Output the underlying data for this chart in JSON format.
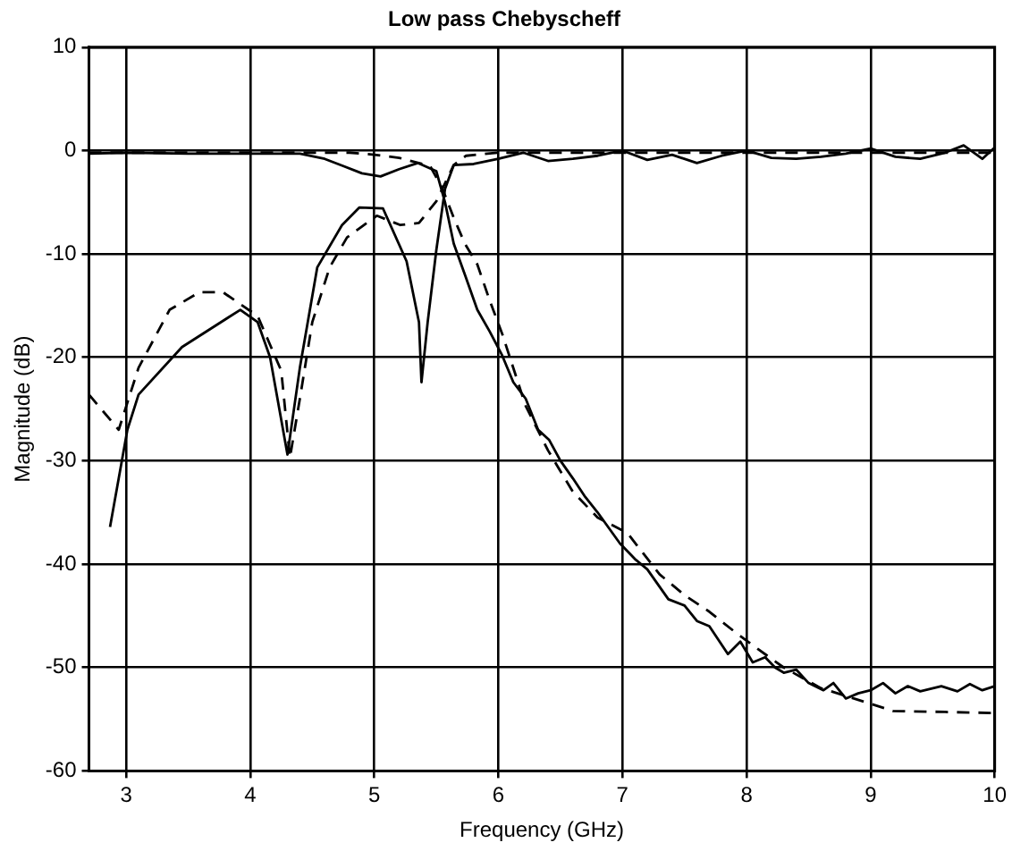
{
  "chart_data": {
    "type": "line",
    "title": "Low pass Chebyscheff",
    "xlabel": "Frequency (GHz)",
    "ylabel": "Magnitude (dB)",
    "xlim": [
      2.7,
      10
    ],
    "xticks": [
      3,
      4,
      5,
      6,
      7,
      8,
      9,
      10
    ],
    "ylim": [
      -60,
      10
    ],
    "yticks": [
      -60,
      -50,
      -40,
      -30,
      -20,
      -10,
      0,
      10
    ],
    "grid": true,
    "legend": false,
    "marker": "none",
    "series": [
      {
        "color": "#000000",
        "line_style": "solid",
        "x": [
          2.7,
          3,
          3.5,
          4,
          4.4,
          4.6,
          4.75,
          4.9,
          5.05,
          5.2,
          5.35,
          5.5,
          5.57,
          5.64,
          5.73,
          5.83,
          5.93,
          6.03,
          6.12,
          6.22,
          6.32,
          6.41,
          6.5,
          6.6,
          6.7,
          6.8,
          6.98,
          7.1,
          7.2,
          7.37,
          7.5,
          7.6,
          7.7,
          7.85,
          7.95,
          8.05,
          8.15,
          8.23,
          8.3,
          8.4,
          8.5,
          8.62,
          8.7,
          8.8,
          8.9,
          9.0,
          9.1,
          9.2,
          9.3,
          9.4,
          9.57,
          9.7,
          9.8,
          9.9,
          10
        ],
        "values": [
          -0.3,
          -0.2,
          -0.3,
          -0.3,
          -0.3,
          -0.8,
          -1.5,
          -2.2,
          -2.5,
          -1.8,
          -1.2,
          -2,
          -5,
          -9,
          -12,
          -15.4,
          -17.5,
          -19.8,
          -22.4,
          -24,
          -27,
          -28,
          -30,
          -31.7,
          -33.5,
          -35,
          -38,
          -39.5,
          -40.5,
          -43.4,
          -44,
          -45.5,
          -46,
          -48.7,
          -47.5,
          -49.5,
          -49,
          -50,
          -50.5,
          -50.2,
          -51.5,
          -52.2,
          -51.5,
          -53,
          -52.5,
          -52.2,
          -51.5,
          -52.5,
          -51.8,
          -52.3,
          -51.8,
          -52.3,
          -51.6,
          -52.2,
          -51.8
        ]
      },
      {
        "color": "#000000",
        "line_style": "dashed",
        "x": [
          2.7,
          4.8,
          5.0,
          5.2,
          5.45,
          5.55,
          5.64,
          5.73,
          5.83,
          5.93,
          6.03,
          6.22,
          6.4,
          6.6,
          6.8,
          7.04,
          7.3,
          7.5,
          7.7,
          7.9,
          8.09,
          8.3,
          8.6,
          9.0,
          9.18,
          9.6,
          10
        ],
        "values": [
          -0.2,
          -0.2,
          -0.4,
          -0.7,
          -1.5,
          -3.7,
          -6.5,
          -9,
          -11,
          -14.5,
          -17.7,
          -24.7,
          -29,
          -33,
          -35.5,
          -37,
          -41,
          -43,
          -44.6,
          -46.5,
          -48.2,
          -50,
          -52,
          -53.5,
          -54.2,
          -54.3,
          -54.4
        ]
      },
      {
        "color": "#000000",
        "line_style": "solid",
        "x": [
          2.87,
          3.01,
          3.1,
          3.45,
          3.92,
          4.06,
          4.16,
          4.3,
          4.4,
          4.54,
          4.74,
          4.88,
          5.07,
          5.26,
          5.36,
          5.38,
          5.43,
          5.5,
          5.57,
          5.64,
          5.8,
          6.0,
          6.2,
          6.4,
          6.6,
          6.8,
          7.0,
          7.2,
          7.4,
          7.6,
          7.8,
          8.0,
          8.2,
          8.4,
          8.6,
          8.8,
          9.0,
          9.2,
          9.4,
          9.6,
          9.75,
          9.9,
          10
        ],
        "values": [
          -36.4,
          -27,
          -23.6,
          -19,
          -15.4,
          -16.6,
          -20,
          -29.4,
          -21,
          -11.3,
          -7.2,
          -5.5,
          -5.6,
          -10.7,
          -16.6,
          -22.4,
          -16.6,
          -9.6,
          -3.7,
          -1.4,
          -1.3,
          -0.8,
          -0.2,
          -1,
          -0.8,
          -0.5,
          0,
          -0.9,
          -0.4,
          -1.2,
          -0.5,
          0,
          -0.7,
          -0.8,
          -0.6,
          -0.3,
          0.2,
          -0.6,
          -0.8,
          -0.2,
          0.5,
          -0.8,
          0.3
        ]
      },
      {
        "color": "#000000",
        "line_style": "dashed",
        "x": [
          2.7,
          2.94,
          3.1,
          3.35,
          3.59,
          3.78,
          4.06,
          4.25,
          4.32,
          4.4,
          4.5,
          4.64,
          4.78,
          5.02,
          5.21,
          5.36,
          5.5,
          5.64,
          5.74,
          6.0,
          10
        ],
        "values": [
          -23.6,
          -27,
          -21,
          -15.4,
          -13.7,
          -13.7,
          -16,
          -21.3,
          -29.7,
          -24,
          -16.6,
          -11.3,
          -8.4,
          -6.3,
          -7.2,
          -7,
          -4.9,
          -1.4,
          -0.5,
          -0.2,
          -0.2
        ]
      }
    ]
  }
}
